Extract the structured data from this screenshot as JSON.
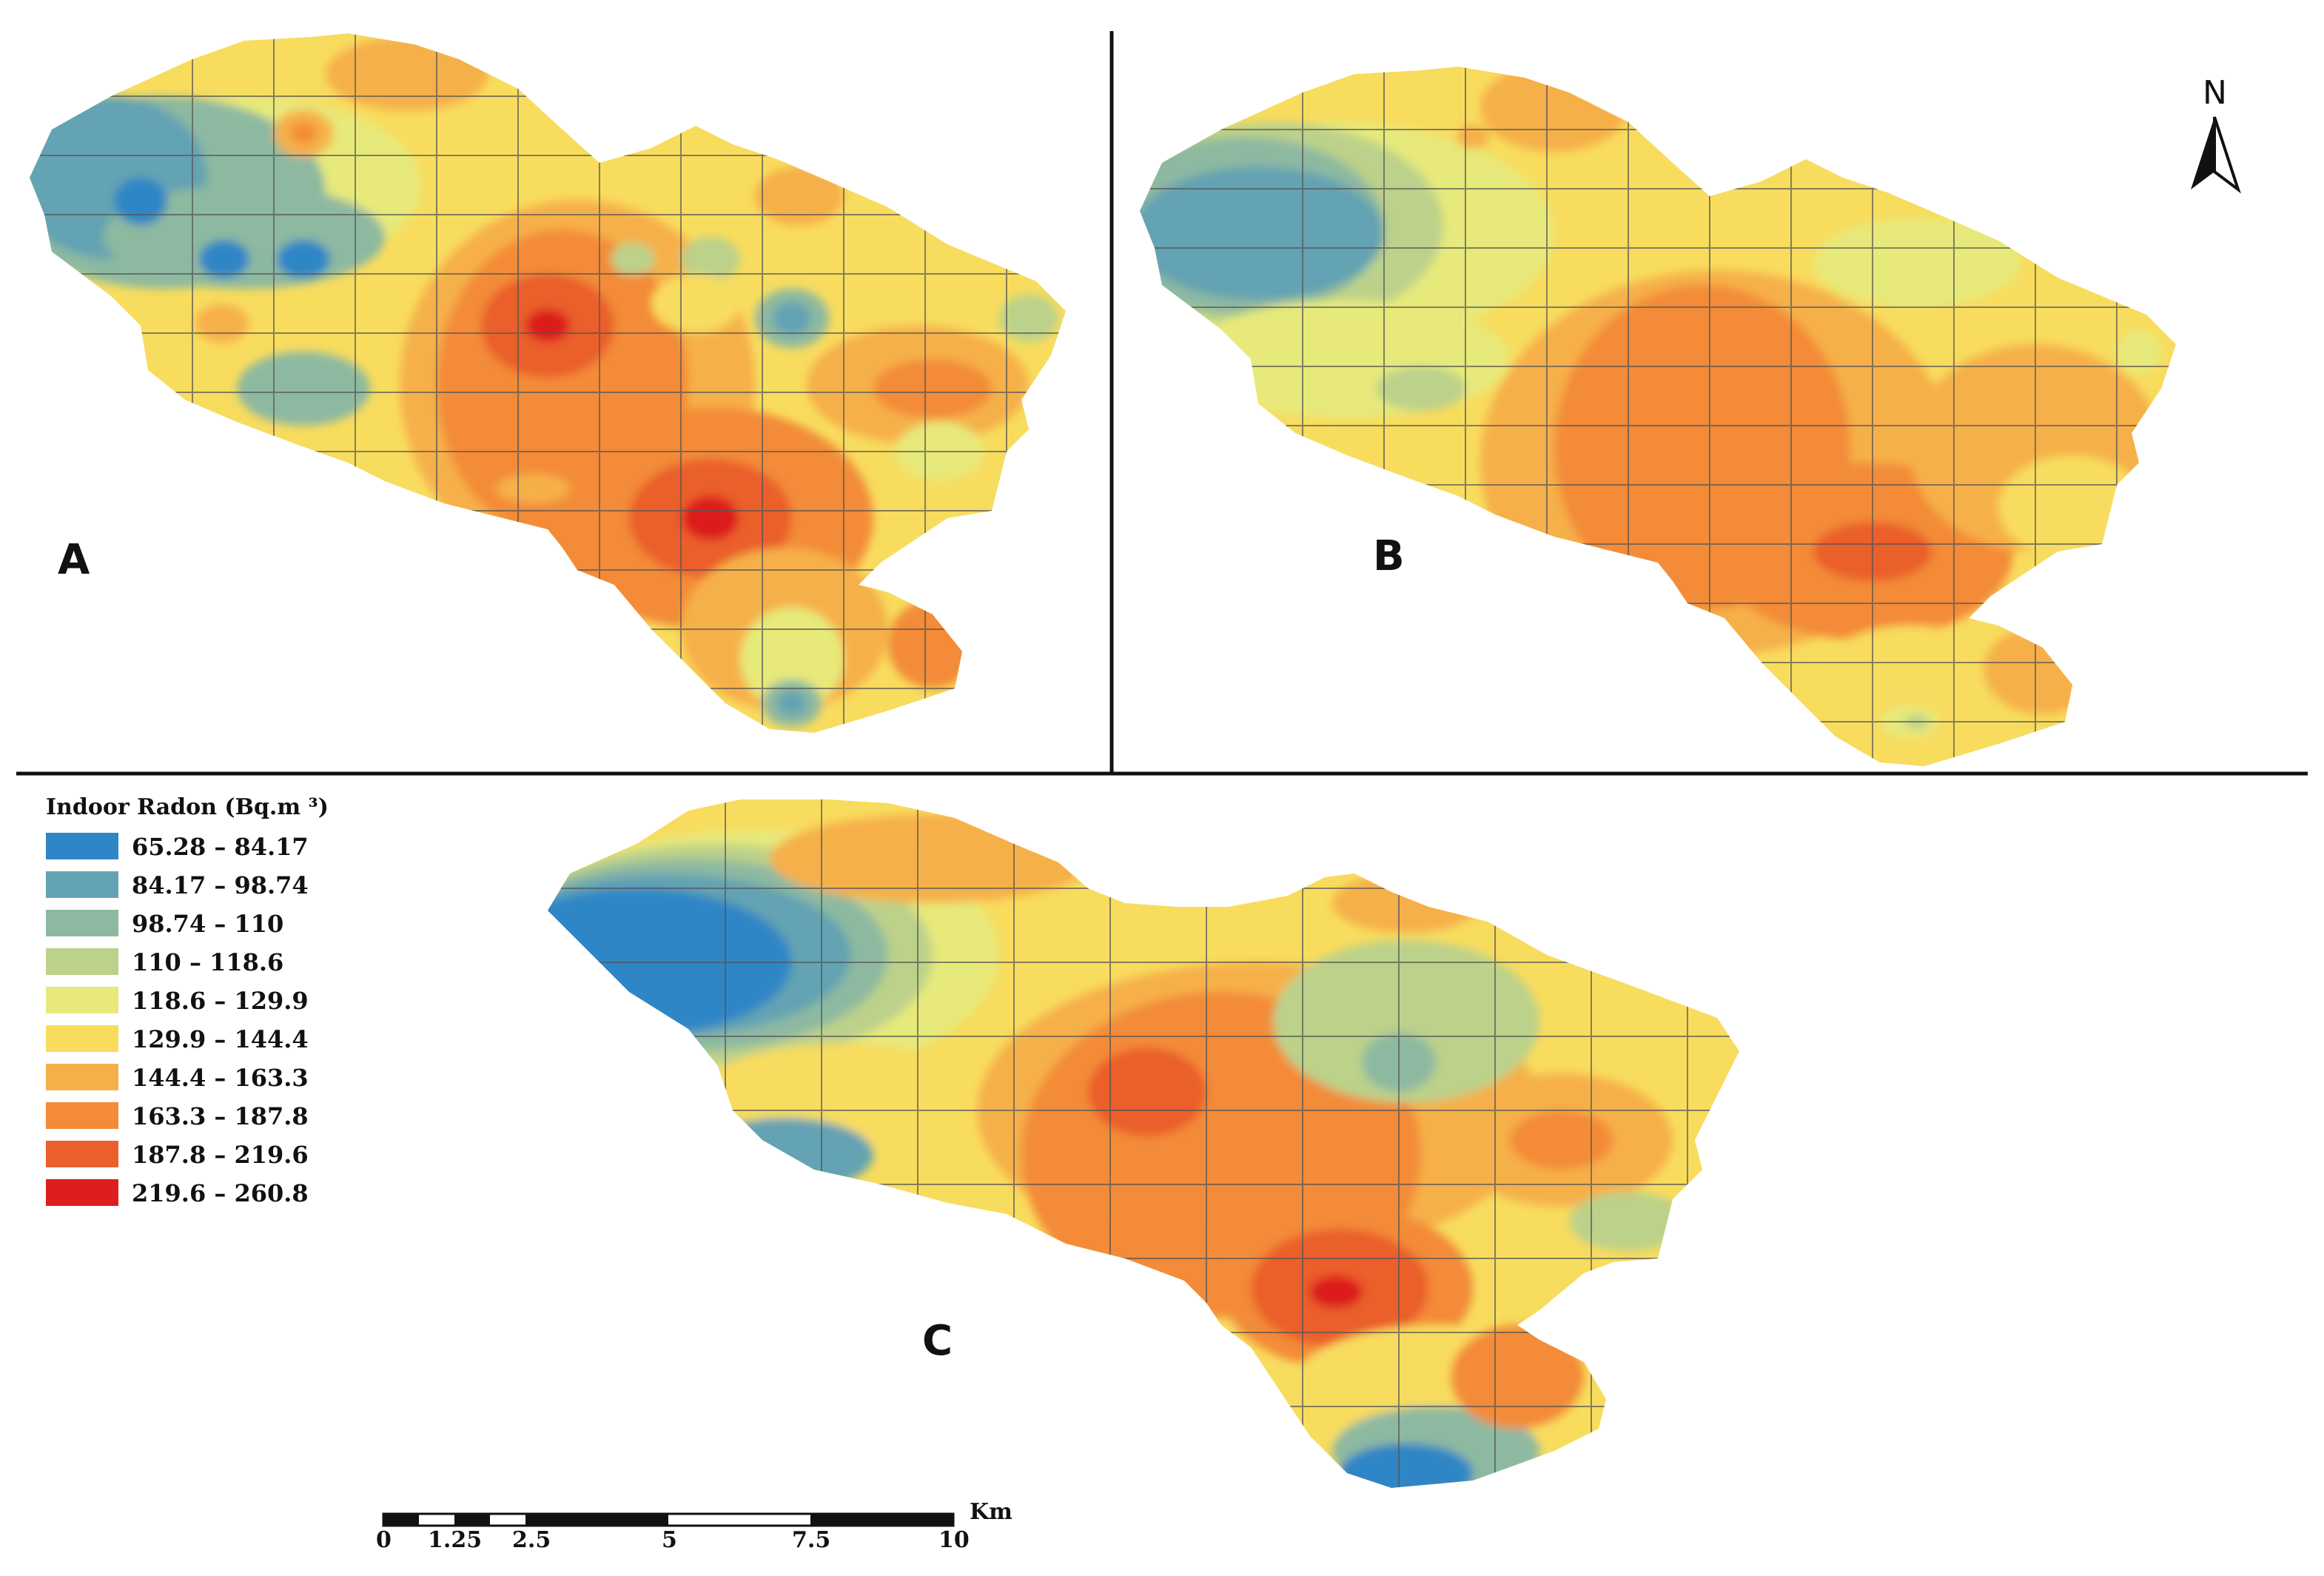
{
  "panels": [
    {
      "label": "A"
    },
    {
      "label": "B"
    },
    {
      "label": "C"
    }
  ],
  "legend": {
    "title": "Indoor Radon (Bq.m ³)",
    "classes": [
      {
        "range": "65.28 – 84.17",
        "color": "#2f86c6"
      },
      {
        "range": "84.17 – 98.74",
        "color": "#64a3b3"
      },
      {
        "range": "98.74 – 110",
        "color": "#8db9a0"
      },
      {
        "range": "110 – 118.6",
        "color": "#bcd18a"
      },
      {
        "range": "118.6 – 129.9",
        "color": "#e7e97a"
      },
      {
        "range": "129.9 – 144.4",
        "color": "#f8dc5e"
      },
      {
        "range": "144.4 – 163.3",
        "color": "#f6b04a"
      },
      {
        "range": "163.3 – 187.8",
        "color": "#f38b38"
      },
      {
        "range": "187.8 – 219.6",
        "color": "#ea5f2c"
      },
      {
        "range": "219.6 – 260.8",
        "color": "#dc1e1e"
      }
    ]
  },
  "north_arrow": {
    "label": "N"
  },
  "scale_bar": {
    "unit": "Km",
    "ticks": [
      "0",
      "1.25",
      "2.5",
      "5",
      "7.5",
      "10"
    ]
  }
}
